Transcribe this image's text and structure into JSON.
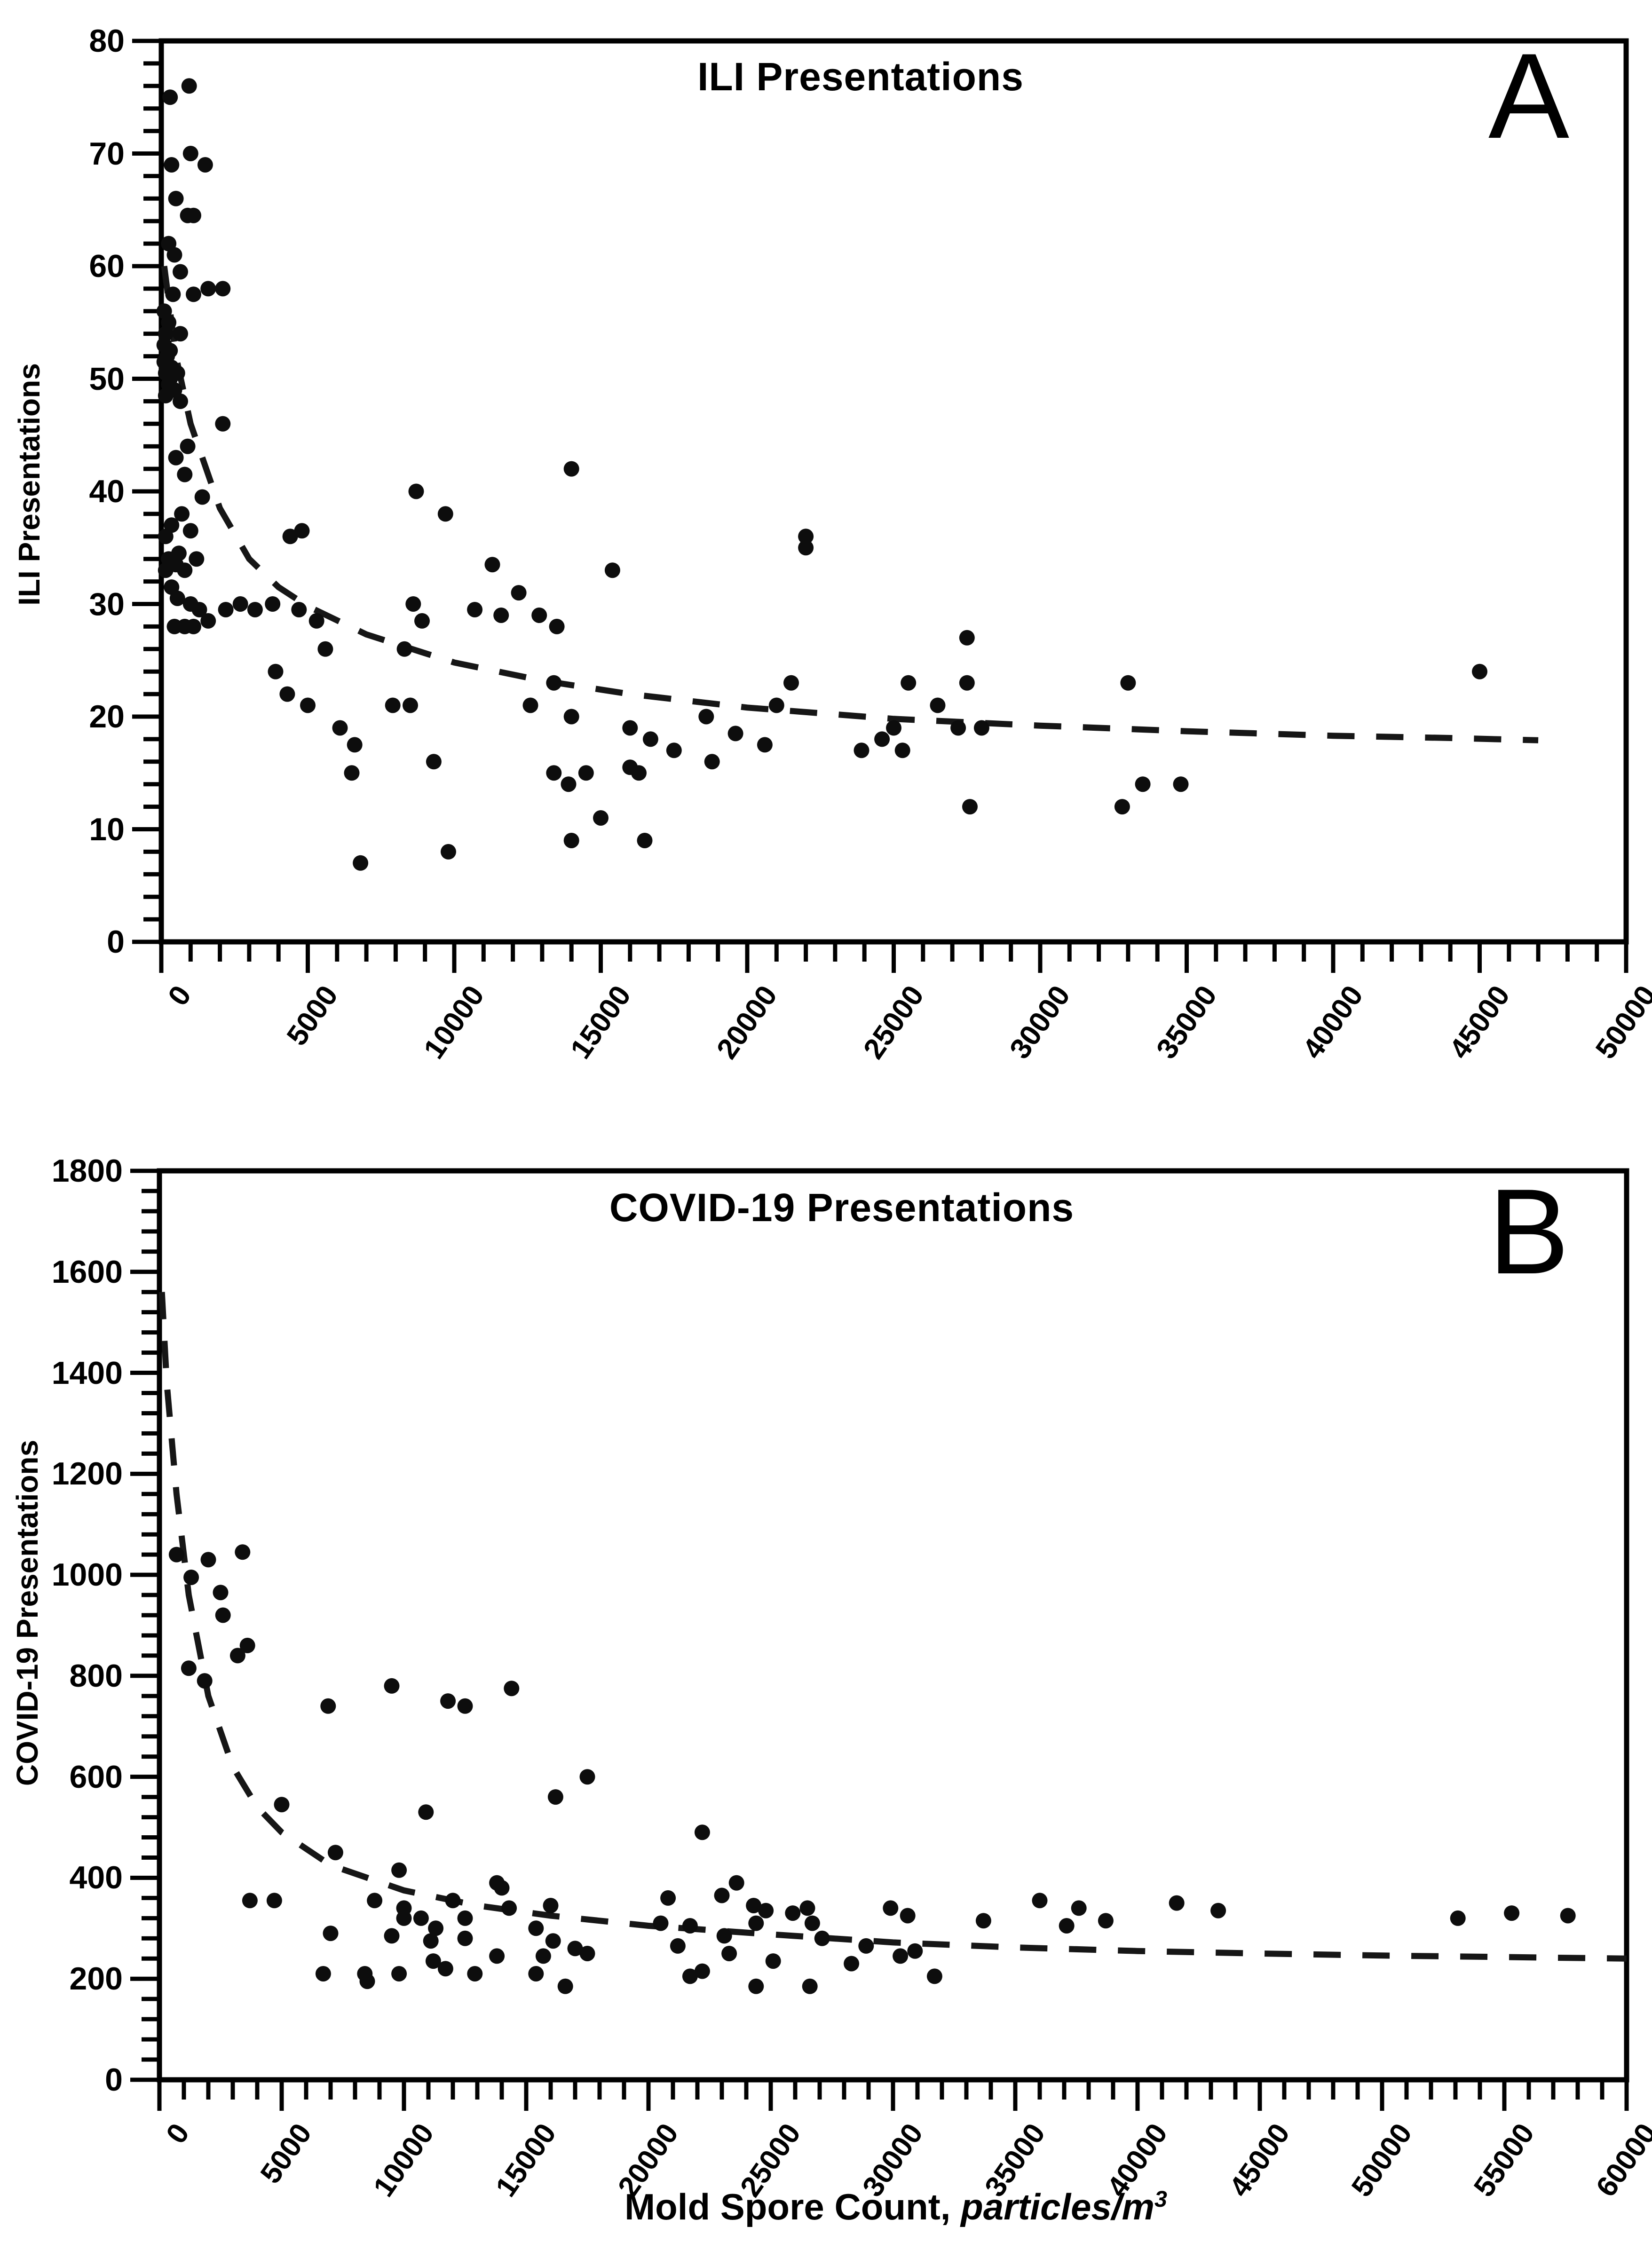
{
  "figure": {
    "background": "#ffffff",
    "ink_color": "#000000",
    "x_axis_title": {
      "prefix": "Mold Spore Count, ",
      "unit_italic": "particles/m",
      "unit_sup": "3"
    }
  },
  "chart_data": [
    {
      "type": "scatter",
      "title": "ILI Presentations",
      "panel_label": "A",
      "ylabel": "ILI Presentations",
      "xlabel": "",
      "xlim": [
        0,
        50000
      ],
      "ylim": [
        0,
        80
      ],
      "x_tick_step": 5000,
      "x_minor_step": 1000,
      "y_tick_step": 10,
      "y_minor_step": 2,
      "x_tick_labels": [
        "0",
        "5000",
        "10000",
        "15000",
        "20000",
        "25000",
        "30000",
        "35000",
        "40000",
        "45000",
        "50000"
      ],
      "y_tick_labels": [
        "0",
        "10",
        "20",
        "30",
        "40",
        "50",
        "60",
        "70",
        "80"
      ],
      "legend": "none",
      "grid": false,
      "marker_color": "#0d0d0d",
      "trend_style": "dashed",
      "points": [
        [
          300,
          75
        ],
        [
          950,
          76
        ],
        [
          350,
          69
        ],
        [
          1000,
          70
        ],
        [
          1500,
          69
        ],
        [
          500,
          66
        ],
        [
          900,
          64.5
        ],
        [
          1100,
          64.5
        ],
        [
          250,
          62
        ],
        [
          450,
          61
        ],
        [
          650,
          59.5
        ],
        [
          400,
          57.5
        ],
        [
          1100,
          57.5
        ],
        [
          1600,
          58
        ],
        [
          2100,
          58
        ],
        [
          100,
          56
        ],
        [
          250,
          55
        ],
        [
          650,
          54
        ],
        [
          150,
          54
        ],
        [
          100,
          53
        ],
        [
          300,
          52.5
        ],
        [
          200,
          52
        ],
        [
          100,
          51.5
        ],
        [
          350,
          51
        ],
        [
          150,
          50.5
        ],
        [
          300,
          50
        ],
        [
          550,
          50.5
        ],
        [
          250,
          49.5
        ],
        [
          450,
          49
        ],
        [
          150,
          48.5
        ],
        [
          650,
          48
        ],
        [
          2100,
          46
        ],
        [
          900,
          44
        ],
        [
          500,
          43
        ],
        [
          800,
          41.5
        ],
        [
          1400,
          39.5
        ],
        [
          700,
          38
        ],
        [
          350,
          37
        ],
        [
          1000,
          36.5
        ],
        [
          150,
          36
        ],
        [
          600,
          34.5
        ],
        [
          250,
          34
        ],
        [
          500,
          33.5
        ],
        [
          150,
          33
        ],
        [
          800,
          33
        ],
        [
          1200,
          34
        ],
        [
          350,
          31.5
        ],
        [
          550,
          30.5
        ],
        [
          1000,
          30
        ],
        [
          1300,
          29.5
        ],
        [
          450,
          28
        ],
        [
          800,
          28
        ],
        [
          1100,
          28
        ],
        [
          1600,
          28.5
        ],
        [
          2200,
          29.5
        ],
        [
          2700,
          30
        ],
        [
          3200,
          29.5
        ],
        [
          3900,
          24
        ],
        [
          4400,
          36
        ],
        [
          4800,
          36.5
        ],
        [
          3800,
          30
        ],
        [
          4700,
          29.5
        ],
        [
          5300,
          28.5
        ],
        [
          5600,
          26
        ],
        [
          4300,
          22
        ],
        [
          5000,
          21
        ],
        [
          6100,
          19
        ],
        [
          6600,
          17.5
        ],
        [
          6500,
          15
        ],
        [
          6800,
          7
        ],
        [
          8700,
          40
        ],
        [
          9700,
          38
        ],
        [
          8600,
          30
        ],
        [
          8900,
          28.5
        ],
        [
          8300,
          26
        ],
        [
          7900,
          21
        ],
        [
          8500,
          21
        ],
        [
          9300,
          16
        ],
        [
          9800,
          8
        ],
        [
          10700,
          29.5
        ],
        [
          11300,
          33.5
        ],
        [
          11600,
          29
        ],
        [
          12200,
          31
        ],
        [
          12900,
          29
        ],
        [
          12600,
          21
        ],
        [
          13500,
          28
        ],
        [
          13400,
          23
        ],
        [
          13400,
          15
        ],
        [
          13900,
          14
        ],
        [
          14500,
          15
        ],
        [
          14000,
          42
        ],
        [
          14000,
          20
        ],
        [
          14000,
          9
        ],
        [
          15400,
          33
        ],
        [
          16000,
          19
        ],
        [
          16700,
          18
        ],
        [
          16000,
          15.5
        ],
        [
          16300,
          15
        ],
        [
          15000,
          11
        ],
        [
          16500,
          9
        ],
        [
          17500,
          17
        ],
        [
          18600,
          20
        ],
        [
          18800,
          16
        ],
        [
          19600,
          18.5
        ],
        [
          20600,
          17.5
        ],
        [
          21000,
          21
        ],
        [
          22000,
          36
        ],
        [
          22000,
          35
        ],
        [
          21500,
          23
        ],
        [
          23900,
          17
        ],
        [
          24600,
          18
        ],
        [
          25000,
          19
        ],
        [
          25300,
          17
        ],
        [
          25500,
          23
        ],
        [
          26500,
          21
        ],
        [
          27500,
          27
        ],
        [
          27500,
          23
        ],
        [
          27200,
          19
        ],
        [
          27600,
          12
        ],
        [
          28000,
          19
        ],
        [
          33000,
          23
        ],
        [
          33500,
          14
        ],
        [
          32800,
          12
        ],
        [
          34800,
          14
        ],
        [
          45000,
          24
        ]
      ],
      "trend": [
        [
          100,
          60
        ],
        [
          500,
          52
        ],
        [
          1000,
          46
        ],
        [
          2000,
          38.5
        ],
        [
          3000,
          34
        ],
        [
          4000,
          31.5
        ],
        [
          5000,
          29.8
        ],
        [
          7000,
          27.3
        ],
        [
          10000,
          24.8
        ],
        [
          13000,
          23.2
        ],
        [
          16000,
          22.0
        ],
        [
          20000,
          20.8
        ],
        [
          25000,
          19.8
        ],
        [
          30000,
          19.2
        ],
        [
          35000,
          18.7
        ],
        [
          40000,
          18.3
        ],
        [
          44000,
          18.1
        ],
        [
          47000,
          17.9
        ]
      ]
    },
    {
      "type": "scatter",
      "title": "COVID-19 Presentations",
      "panel_label": "B",
      "ylabel": "COVID-19 Presentations",
      "xlabel": "Mold Spore Count, particles/m3",
      "xlim": [
        0,
        60000
      ],
      "ylim": [
        0,
        1800
      ],
      "x_tick_step": 5000,
      "x_minor_step": 1000,
      "y_tick_step": 200,
      "y_minor_step": 40,
      "x_tick_labels": [
        "0",
        "5000",
        "10000",
        "15000",
        "20000",
        "25000",
        "30000",
        "35000",
        "40000",
        "45000",
        "50000",
        "55000",
        "60000"
      ],
      "y_tick_labels": [
        "0",
        "200",
        "400",
        "600",
        "800",
        "1000",
        "1200",
        "1400",
        "1600",
        "1800"
      ],
      "legend": "none",
      "grid": false,
      "marker_color": "#0d0d0d",
      "trend_style": "dashed",
      "points": [
        [
          700,
          1040
        ],
        [
          2000,
          1030
        ],
        [
          3400,
          1045
        ],
        [
          1300,
          995
        ],
        [
          2500,
          965
        ],
        [
          2600,
          920
        ],
        [
          3600,
          860
        ],
        [
          3200,
          840
        ],
        [
          1200,
          815
        ],
        [
          1850,
          790
        ],
        [
          6900,
          740
        ],
        [
          9500,
          780
        ],
        [
          11800,
          750
        ],
        [
          12500,
          740
        ],
        [
          14400,
          775
        ],
        [
          17500,
          600
        ],
        [
          16200,
          560
        ],
        [
          10900,
          530
        ],
        [
          5000,
          545
        ],
        [
          7200,
          450
        ],
        [
          9800,
          415
        ],
        [
          22200,
          490
        ],
        [
          13800,
          390
        ],
        [
          23600,
          390
        ],
        [
          3700,
          355
        ],
        [
          4700,
          355
        ],
        [
          8800,
          355
        ],
        [
          10000,
          340
        ],
        [
          10000,
          320
        ],
        [
          10700,
          320
        ],
        [
          12000,
          355
        ],
        [
          11300,
          300
        ],
        [
          12500,
          320
        ],
        [
          14000,
          380
        ],
        [
          14300,
          340
        ],
        [
          7000,
          290
        ],
        [
          9500,
          285
        ],
        [
          11100,
          275
        ],
        [
          12500,
          280
        ],
        [
          13800,
          245
        ],
        [
          11200,
          235
        ],
        [
          11700,
          220
        ],
        [
          12900,
          210
        ],
        [
          6700,
          210
        ],
        [
          8400,
          210
        ],
        [
          8500,
          195
        ],
        [
          9800,
          210
        ],
        [
          15400,
          300
        ],
        [
          16000,
          345
        ],
        [
          16100,
          275
        ],
        [
          15700,
          245
        ],
        [
          15400,
          210
        ],
        [
          17000,
          260
        ],
        [
          17500,
          250
        ],
        [
          16600,
          185
        ],
        [
          20800,
          360
        ],
        [
          20500,
          310
        ],
        [
          21700,
          305
        ],
        [
          21200,
          265
        ],
        [
          23000,
          365
        ],
        [
          21700,
          205
        ],
        [
          22200,
          215
        ],
        [
          24300,
          345
        ],
        [
          24800,
          335
        ],
        [
          24400,
          310
        ],
        [
          25900,
          330
        ],
        [
          26500,
          340
        ],
        [
          26700,
          310
        ],
        [
          23100,
          285
        ],
        [
          23300,
          250
        ],
        [
          25100,
          235
        ],
        [
          24400,
          185
        ],
        [
          26600,
          185
        ],
        [
          27100,
          280
        ],
        [
          28300,
          230
        ],
        [
          28900,
          265
        ],
        [
          29900,
          340
        ],
        [
          30600,
          325
        ],
        [
          30300,
          245
        ],
        [
          30900,
          255
        ],
        [
          31700,
          205
        ],
        [
          33700,
          315
        ],
        [
          36000,
          355
        ],
        [
          37600,
          340
        ],
        [
          37100,
          305
        ],
        [
          38700,
          315
        ],
        [
          41600,
          350
        ],
        [
          43300,
          335
        ],
        [
          53100,
          320
        ],
        [
          55300,
          330
        ],
        [
          57600,
          325
        ]
      ],
      "trend": [
        [
          100,
          1560
        ],
        [
          300,
          1380
        ],
        [
          700,
          1160
        ],
        [
          1200,
          960
        ],
        [
          2000,
          760
        ],
        [
          3000,
          620
        ],
        [
          4000,
          540
        ],
        [
          5000,
          490
        ],
        [
          7000,
          425
        ],
        [
          10000,
          375
        ],
        [
          13000,
          345
        ],
        [
          16000,
          325
        ],
        [
          20000,
          305
        ],
        [
          25000,
          288
        ],
        [
          30000,
          272
        ],
        [
          35000,
          262
        ],
        [
          40000,
          255
        ],
        [
          45000,
          250
        ],
        [
          50000,
          246
        ],
        [
          55000,
          243
        ],
        [
          60000,
          240
        ]
      ]
    }
  ]
}
